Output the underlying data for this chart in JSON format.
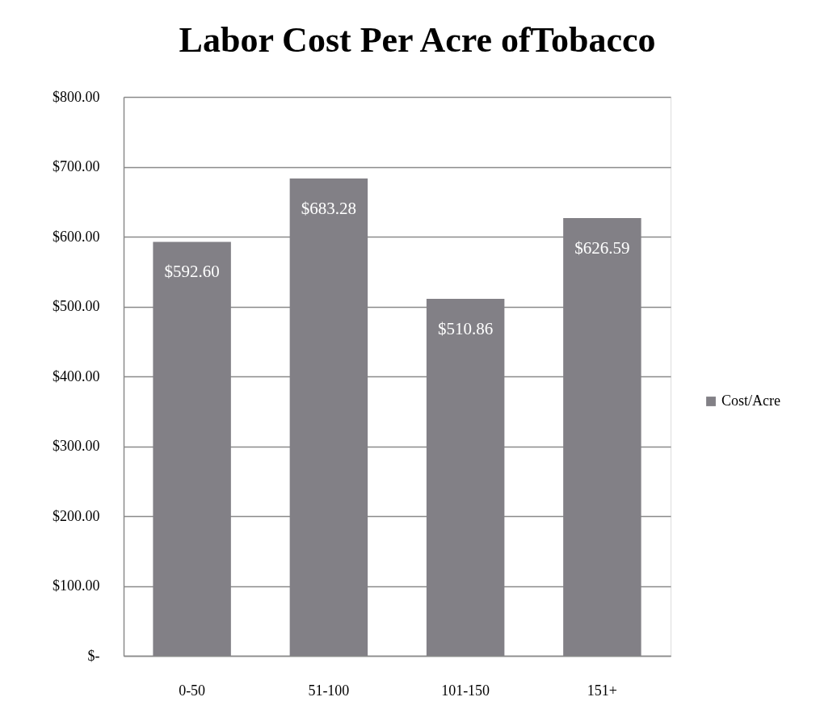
{
  "chart_data": {
    "type": "bar",
    "title": "Labor Cost Per Acre ofTobacco",
    "categories": [
      "0-50",
      "51-100",
      "101-150",
      "151+"
    ],
    "series": [
      {
        "name": "Cost/Acre",
        "color": "#828086",
        "values": [
          592.6,
          683.28,
          510.86,
          626.59
        ],
        "value_labels": [
          "$592.60",
          "$683.28",
          "$510.86",
          "$626.59"
        ]
      }
    ],
    "ylim": [
      0,
      800
    ],
    "yticks": [
      {
        "value": 0,
        "label": "$-"
      },
      {
        "value": 100,
        "label": "$100.00"
      },
      {
        "value": 200,
        "label": "$200.00"
      },
      {
        "value": 300,
        "label": "$300.00"
      },
      {
        "value": 400,
        "label": "$400.00"
      },
      {
        "value": 500,
        "label": "$500.00"
      },
      {
        "value": 600,
        "label": "$600.00"
      },
      {
        "value": 700,
        "label": "$700.00"
      },
      {
        "value": 800,
        "label": "$800.00"
      }
    ],
    "grid": "y",
    "legend": "right"
  }
}
